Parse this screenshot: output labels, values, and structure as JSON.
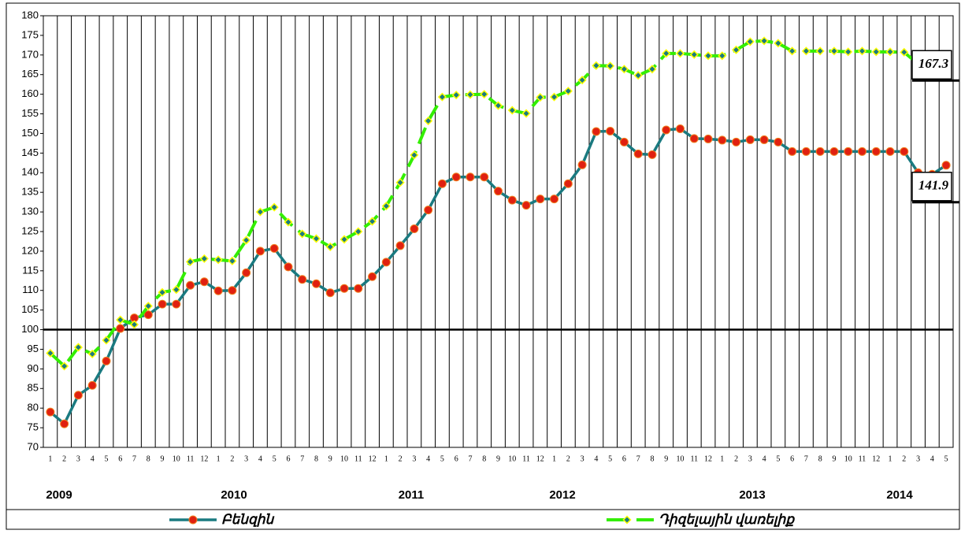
{
  "chart_data": {
    "type": "line",
    "categories": [
      "1",
      "2",
      "3",
      "4",
      "5",
      "6",
      "7",
      "8",
      "9",
      "10",
      "11",
      "12",
      "1",
      "2",
      "3",
      "4",
      "5",
      "6",
      "7",
      "8",
      "9",
      "10",
      "11",
      "12",
      "1",
      "2",
      "3",
      "4",
      "5",
      "6",
      "7",
      "8",
      "9",
      "10",
      "11",
      "12",
      "1",
      "2",
      "3",
      "4",
      "5",
      "6",
      "7",
      "8",
      "9",
      "10",
      "11",
      "12",
      "1",
      "2",
      "3",
      "4",
      "5",
      "6",
      "7",
      "8",
      "9",
      "10",
      "11",
      "12",
      "1",
      "2",
      "3",
      "4",
      "5"
    ],
    "years": [
      "2009",
      "2010",
      "2011",
      "2012",
      "2013",
      "2014"
    ],
    "series": [
      {
        "name": "Բենզին",
        "color": "#1a7a80",
        "marker_color": "#e02010",
        "values": [
          79,
          76,
          83.3,
          85.8,
          92,
          100.3,
          103,
          103.8,
          106.5,
          106.5,
          111.3,
          112.2,
          109.9,
          110,
          114.5,
          120,
          120.7,
          116,
          112.8,
          111.7,
          109.4,
          110.5,
          110.5,
          113.5,
          117.2,
          121.4,
          125.7,
          130.5,
          137.2,
          138.9,
          138.9,
          138.9,
          135.3,
          133,
          131.7,
          133.3,
          133.3,
          137.2,
          142,
          150.5,
          150.6,
          147.8,
          144.8,
          144.6,
          150.9,
          151.2,
          148.7,
          148.6,
          148.3,
          147.8,
          148.4,
          148.4,
          147.8,
          145.4,
          145.4,
          145.4,
          145.4,
          145.4,
          145.4,
          145.4,
          145.4,
          145.4,
          140,
          139.6,
          141.9
        ]
      },
      {
        "name": "Դիզելային վառելիք",
        "color": "#33ee00",
        "marker_color": "#1a7a80",
        "values": [
          94,
          90.7,
          95.5,
          93.8,
          97.3,
          102.5,
          101.3,
          106,
          109.5,
          110.2,
          117.3,
          118.1,
          117.8,
          117.5,
          122.8,
          130,
          131.2,
          127.4,
          124.4,
          123.2,
          121.1,
          123,
          125,
          127.6,
          131.5,
          137.5,
          144.5,
          153.2,
          159.3,
          159.8,
          159.9,
          160,
          157.1,
          155.9,
          155.1,
          159.2,
          159.3,
          160.8,
          163.6,
          167.3,
          167.2,
          166.4,
          164.8,
          166.4,
          170.4,
          170.4,
          170.1,
          169.8,
          169.8,
          171.3,
          173.4,
          173.6,
          173,
          171,
          171,
          171,
          171,
          170.8,
          171,
          170.8,
          170.8,
          170.7,
          167.7,
          167.4,
          167.3
        ]
      }
    ],
    "ylim": [
      70,
      180
    ],
    "yticks": [
      70,
      75,
      80,
      85,
      90,
      95,
      100,
      105,
      110,
      115,
      120,
      125,
      130,
      135,
      140,
      145,
      150,
      155,
      160,
      165,
      170,
      175,
      180
    ],
    "baseline": 100,
    "grid": "x"
  }
}
